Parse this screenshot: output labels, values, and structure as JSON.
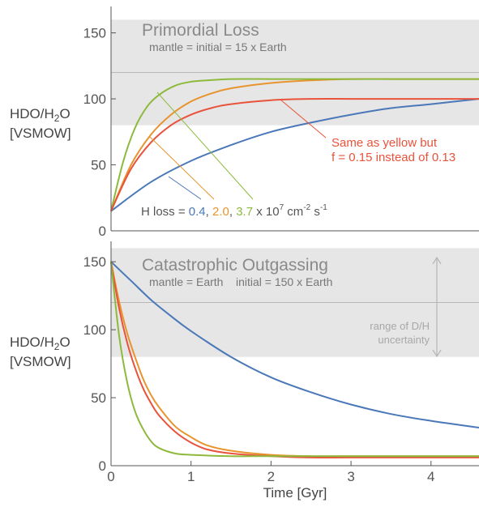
{
  "chart_data": [
    {
      "type": "line",
      "title": "Primordial Loss",
      "subtitle": "mantle = initial = 15 x Earth",
      "ylabel_line1": "HDO/H",
      "ylabel_sub": "2",
      "ylabel_line1_end": "O",
      "ylabel_line2": "[VSMOW]",
      "xlim": [
        0,
        4.6
      ],
      "ylim": [
        0,
        170
      ],
      "yticks": [
        0,
        50,
        100,
        150
      ],
      "band": [
        80,
        160
      ],
      "band_midline": 120,
      "series": [
        {
          "color": "#4a78b8",
          "x": [
            0,
            0.5,
            1,
            1.5,
            2,
            2.5,
            3,
            3.5,
            4,
            4.6
          ],
          "values": [
            15,
            37,
            53,
            65,
            75,
            82,
            88,
            93,
            96,
            100
          ]
        },
        {
          "color": "#e8942e",
          "x": [
            0,
            0.25,
            0.5,
            0.75,
            1,
            1.25,
            1.5,
            2,
            2.5,
            3,
            3.5,
            4,
            4.6
          ],
          "values": [
            15,
            50,
            73,
            88,
            98,
            104,
            108,
            112,
            114,
            115,
            115,
            115,
            115
          ]
        },
        {
          "color": "#8dba3c",
          "x": [
            0,
            0.15,
            0.3,
            0.45,
            0.6,
            0.8,
            1,
            1.2,
            1.5,
            2,
            2.5,
            3,
            4,
            4.6
          ],
          "values": [
            15,
            52,
            78,
            94,
            103,
            110,
            113,
            114,
            115,
            115,
            115,
            115,
            115,
            115
          ]
        },
        {
          "color": "#e8533c",
          "x": [
            0,
            0.25,
            0.5,
            0.75,
            1,
            1.25,
            1.5,
            2,
            2.5,
            3,
            3.5,
            4,
            4.6
          ],
          "values": [
            15,
            47,
            67,
            80,
            88,
            93,
            96,
            99,
            100,
            100,
            100,
            100,
            100
          ]
        }
      ],
      "annotation_red": {
        "line1": "Same as yellow but",
        "line2": "f = 0.15 instead of 0.13",
        "color": "#e8533c"
      },
      "annotation_hloss": {
        "prefix": "H loss = ",
        "v1": "0.4",
        "c1": "#4a78b8",
        "sep1": ", ",
        "v2": "2.0",
        "c2": "#e8942e",
        "sep2": ", ",
        "v3": "3.7",
        "c3": "#8dba3c",
        "unit_a": " x 10",
        "exp_a": "7",
        "unit_b": " cm",
        "exp_b": "-2",
        "unit_c": " s",
        "exp_c": "-1"
      }
    },
    {
      "type": "line",
      "title": "Catastrophic Outgassing",
      "subtitle": "mantle = Earth    initial = 150 x Earth",
      "ylabel_line1": "HDO/H",
      "ylabel_sub": "2",
      "ylabel_line1_end": "O",
      "ylabel_line2": "[VSMOW]",
      "xlabel": "Time [Gyr]",
      "xlim": [
        0,
        4.6
      ],
      "ylim": [
        0,
        165
      ],
      "xticks": [
        0,
        1,
        2,
        3,
        4
      ],
      "yticks": [
        0,
        50,
        100,
        150
      ],
      "band": [
        80,
        160
      ],
      "band_midline": 120,
      "range_label_line1": "range of D/H",
      "range_label_line2": "uncertainty",
      "series": [
        {
          "color": "#4a78b8",
          "x": [
            0,
            0.25,
            0.5,
            0.75,
            1,
            1.5,
            2,
            2.5,
            3,
            3.5,
            4,
            4.6
          ],
          "values": [
            150,
            136,
            122,
            110,
            99,
            80,
            65,
            54,
            45,
            38,
            33,
            28
          ]
        },
        {
          "color": "#e8942e",
          "x": [
            0,
            0.1,
            0.2,
            0.3,
            0.4,
            0.5,
            0.6,
            0.8,
            1,
            1.2,
            1.5,
            2,
            2.5,
            3,
            4,
            4.6
          ],
          "values": [
            150,
            121,
            98,
            80,
            64,
            52,
            43,
            29,
            21,
            15,
            11,
            8,
            7,
            7,
            7,
            7
          ]
        },
        {
          "color": "#e8533c",
          "x": [
            0,
            0.1,
            0.2,
            0.3,
            0.4,
            0.5,
            0.6,
            0.8,
            1,
            1.2,
            1.5,
            2,
            2.5,
            3,
            4,
            4.6
          ],
          "values": [
            150,
            116,
            91,
            72,
            57,
            46,
            37,
            25,
            17,
            12,
            9,
            7,
            6,
            6,
            6,
            6
          ]
        },
        {
          "color": "#8dba3c",
          "x": [
            0,
            0.1,
            0.2,
            0.3,
            0.4,
            0.5,
            0.6,
            0.8,
            1,
            1.5,
            2,
            3,
            4,
            4.6
          ],
          "values": [
            150,
            96,
            62,
            40,
            27,
            18,
            13,
            9,
            8,
            7,
            7,
            7,
            7,
            7
          ]
        }
      ]
    }
  ]
}
